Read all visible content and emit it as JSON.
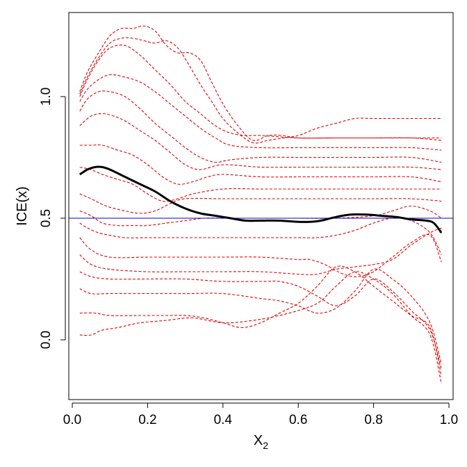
{
  "chart_data": {
    "type": "line",
    "title": "",
    "xlabel": "X",
    "xlabel_sub": "2",
    "ylabel": "ICE(x)",
    "xlim": [
      0,
      1
    ],
    "ylim": [
      -0.22,
      1.34
    ],
    "x_ticks": [
      0.0,
      0.2,
      0.4,
      0.6,
      0.8,
      1.0
    ],
    "x_tick_labels": [
      "0.0",
      "0.2",
      "0.4",
      "0.6",
      "0.8",
      "1.0"
    ],
    "y_ticks": [
      0.0,
      0.5,
      1.0
    ],
    "y_tick_labels": [
      "0.0",
      "0.5",
      "1.0"
    ],
    "reference_line": {
      "y": 0.5,
      "color": "#0000cc"
    },
    "colors": {
      "ice": "#e00000",
      "mean": "#000000",
      "axes": "#000000"
    },
    "ice_curves": [
      {
        "x": [
          0.02,
          0.05,
          0.08,
          0.12,
          0.18,
          0.25,
          0.32,
          0.4,
          0.48,
          0.55,
          0.62,
          0.66,
          0.7,
          0.75,
          0.8,
          0.85,
          0.9,
          0.95,
          0.98
        ],
        "y": [
          0.02,
          0.02,
          0.04,
          0.05,
          0.07,
          0.08,
          0.09,
          0.07,
          0.08,
          0.1,
          0.13,
          0.16,
          0.22,
          0.28,
          0.25,
          0.19,
          0.1,
          0.02,
          -0.18
        ]
      },
      {
        "x": [
          0.02,
          0.06,
          0.1,
          0.18,
          0.25,
          0.3,
          0.35,
          0.4,
          0.45,
          0.5,
          0.55,
          0.6,
          0.65,
          0.7,
          0.75,
          0.8,
          0.85,
          0.9,
          0.95,
          0.98
        ],
        "y": [
          0.11,
          0.11,
          0.1,
          0.1,
          0.1,
          0.1,
          0.09,
          0.07,
          0.05,
          0.07,
          0.11,
          0.15,
          0.22,
          0.3,
          0.28,
          0.22,
          0.16,
          0.1,
          0.05,
          -0.15
        ]
      },
      {
        "x": [
          0.02,
          0.05,
          0.1,
          0.2,
          0.3,
          0.4,
          0.5,
          0.55,
          0.6,
          0.65,
          0.7,
          0.75,
          0.8,
          0.85,
          0.9,
          0.95,
          0.98
        ],
        "y": [
          0.21,
          0.19,
          0.19,
          0.19,
          0.19,
          0.19,
          0.17,
          0.16,
          0.14,
          0.11,
          0.13,
          0.2,
          0.29,
          0.25,
          0.18,
          0.07,
          -0.1
        ]
      },
      {
        "x": [
          0.02,
          0.05,
          0.1,
          0.2,
          0.3,
          0.4,
          0.5,
          0.55,
          0.6,
          0.65,
          0.7,
          0.75,
          0.8,
          0.85,
          0.9,
          0.95,
          0.98
        ],
        "y": [
          0.28,
          0.26,
          0.25,
          0.25,
          0.25,
          0.24,
          0.24,
          0.24,
          0.22,
          0.18,
          0.14,
          0.18,
          0.25,
          0.2,
          0.12,
          0.04,
          -0.12
        ]
      },
      {
        "x": [
          0.02,
          0.05,
          0.1,
          0.2,
          0.3,
          0.4,
          0.5,
          0.6,
          0.65,
          0.7,
          0.75,
          0.8,
          0.85,
          0.9,
          0.95,
          0.98
        ],
        "y": [
          0.35,
          0.31,
          0.29,
          0.28,
          0.28,
          0.28,
          0.28,
          0.27,
          0.27,
          0.29,
          0.3,
          0.31,
          0.33,
          0.39,
          0.44,
          0.46
        ]
      },
      {
        "x": [
          0.02,
          0.05,
          0.1,
          0.2,
          0.3,
          0.4,
          0.5,
          0.6,
          0.63,
          0.67,
          0.72,
          0.76,
          0.8,
          0.85,
          0.9,
          0.95,
          0.98
        ],
        "y": [
          0.42,
          0.37,
          0.34,
          0.34,
          0.34,
          0.34,
          0.34,
          0.33,
          0.33,
          0.31,
          0.27,
          0.26,
          0.28,
          0.34,
          0.4,
          0.43,
          0.32
        ]
      },
      {
        "x": [
          0.02,
          0.04,
          0.07,
          0.1,
          0.14,
          0.2,
          0.3,
          0.4,
          0.5,
          0.6,
          0.65,
          0.7,
          0.75,
          0.8,
          0.85,
          0.9,
          0.95,
          0.98
        ],
        "y": [
          0.48,
          0.46,
          0.44,
          0.43,
          0.42,
          0.42,
          0.42,
          0.42,
          0.42,
          0.42,
          0.42,
          0.43,
          0.45,
          0.48,
          0.5,
          0.49,
          0.44,
          0.35
        ]
      },
      {
        "x": [
          0.02,
          0.05,
          0.08,
          0.12,
          0.16,
          0.2,
          0.25,
          0.3,
          0.35,
          0.4,
          0.5,
          0.6,
          0.7,
          0.8,
          0.85,
          0.9,
          0.95,
          0.98
        ],
        "y": [
          0.53,
          0.51,
          0.48,
          0.47,
          0.47,
          0.47,
          0.48,
          0.49,
          0.5,
          0.5,
          0.5,
          0.5,
          0.5,
          0.51,
          0.53,
          0.55,
          0.53,
          0.5
        ]
      },
      {
        "x": [
          0.02,
          0.05,
          0.09,
          0.14,
          0.18,
          0.22,
          0.26,
          0.3,
          0.4,
          0.5,
          0.6,
          0.7,
          0.8,
          0.9,
          0.98
        ],
        "y": [
          0.6,
          0.58,
          0.55,
          0.53,
          0.52,
          0.53,
          0.56,
          0.58,
          0.58,
          0.58,
          0.58,
          0.58,
          0.58,
          0.58,
          0.57
        ]
      },
      {
        "x": [
          0.02,
          0.05,
          0.08,
          0.12,
          0.16,
          0.2,
          0.24,
          0.28,
          0.32,
          0.4,
          0.5,
          0.6,
          0.7,
          0.8,
          0.9,
          0.98
        ],
        "y": [
          0.71,
          0.7,
          0.68,
          0.66,
          0.64,
          0.6,
          0.57,
          0.58,
          0.6,
          0.62,
          0.62,
          0.62,
          0.62,
          0.62,
          0.62,
          0.62
        ]
      },
      {
        "x": [
          0.02,
          0.05,
          0.08,
          0.12,
          0.16,
          0.2,
          0.24,
          0.28,
          0.32,
          0.36,
          0.4,
          0.5,
          0.6,
          0.7,
          0.8,
          0.9,
          0.98
        ],
        "y": [
          0.8,
          0.8,
          0.8,
          0.78,
          0.76,
          0.72,
          0.67,
          0.64,
          0.65,
          0.67,
          0.68,
          0.67,
          0.67,
          0.67,
          0.67,
          0.67,
          0.65
        ]
      },
      {
        "x": [
          0.02,
          0.05,
          0.08,
          0.11,
          0.14,
          0.18,
          0.22,
          0.26,
          0.3,
          0.34,
          0.4,
          0.5,
          0.6,
          0.7,
          0.8,
          0.9,
          0.98
        ],
        "y": [
          0.88,
          0.92,
          0.93,
          0.92,
          0.9,
          0.86,
          0.82,
          0.77,
          0.72,
          0.7,
          0.72,
          0.71,
          0.71,
          0.71,
          0.71,
          0.71,
          0.7
        ]
      },
      {
        "x": [
          0.02,
          0.04,
          0.07,
          0.1,
          0.14,
          0.18,
          0.22,
          0.26,
          0.3,
          0.34,
          0.38,
          0.42,
          0.5,
          0.6,
          0.7,
          0.8,
          0.9,
          0.98
        ],
        "y": [
          0.94,
          0.99,
          1.02,
          1.02,
          1.0,
          0.95,
          0.89,
          0.84,
          0.79,
          0.75,
          0.73,
          0.74,
          0.75,
          0.75,
          0.75,
          0.75,
          0.75,
          0.73
        ]
      },
      {
        "x": [
          0.02,
          0.04,
          0.07,
          0.1,
          0.14,
          0.18,
          0.22,
          0.26,
          0.3,
          0.34,
          0.38,
          0.42,
          0.5,
          0.6,
          0.7,
          0.8,
          0.9,
          0.98
        ],
        "y": [
          0.98,
          1.03,
          1.07,
          1.09,
          1.08,
          1.06,
          1.02,
          0.97,
          0.92,
          0.87,
          0.83,
          0.8,
          0.79,
          0.79,
          0.79,
          0.79,
          0.79,
          0.78
        ]
      },
      {
        "x": [
          0.02,
          0.04,
          0.07,
          0.1,
          0.14,
          0.18,
          0.22,
          0.26,
          0.3,
          0.34,
          0.38,
          0.42,
          0.46,
          0.5,
          0.6,
          0.7,
          0.8,
          0.9,
          0.98
        ],
        "y": [
          1.0,
          1.07,
          1.15,
          1.2,
          1.21,
          1.17,
          1.11,
          1.05,
          0.98,
          0.93,
          0.88,
          0.85,
          0.84,
          0.84,
          0.83,
          0.83,
          0.83,
          0.83,
          0.82
        ]
      },
      {
        "x": [
          0.02,
          0.04,
          0.07,
          0.1,
          0.13,
          0.16,
          0.19,
          0.22,
          0.25,
          0.28,
          0.31,
          0.34,
          0.37,
          0.4,
          0.44,
          0.48,
          0.52,
          0.56,
          0.6,
          0.65,
          0.7,
          0.75,
          0.8,
          0.9,
          0.98
        ],
        "y": [
          1.01,
          1.08,
          1.16,
          1.22,
          1.24,
          1.24,
          1.23,
          1.22,
          1.23,
          1.2,
          1.13,
          1.05,
          0.98,
          0.91,
          0.85,
          0.81,
          0.82,
          0.83,
          0.84,
          0.87,
          0.89,
          0.91,
          0.91,
          0.91,
          0.91
        ]
      },
      {
        "x": [
          0.02,
          0.04,
          0.07,
          0.1,
          0.13,
          0.16,
          0.19,
          0.22,
          0.25,
          0.28,
          0.31,
          0.34,
          0.37,
          0.4,
          0.44,
          0.48,
          0.52,
          0.56,
          0.6,
          0.7,
          0.8,
          0.9,
          0.98
        ],
        "y": [
          1.02,
          1.1,
          1.18,
          1.25,
          1.28,
          1.28,
          1.29,
          1.27,
          1.21,
          1.18,
          1.18,
          1.15,
          1.06,
          0.97,
          0.88,
          0.82,
          0.84,
          0.84,
          0.83,
          0.83,
          0.83,
          0.83,
          0.83
        ]
      }
    ],
    "mean_curve": {
      "x": [
        0.02,
        0.04,
        0.06,
        0.08,
        0.1,
        0.14,
        0.18,
        0.22,
        0.26,
        0.3,
        0.34,
        0.38,
        0.42,
        0.46,
        0.5,
        0.55,
        0.6,
        0.63,
        0.66,
        0.7,
        0.74,
        0.78,
        0.82,
        0.86,
        0.9,
        0.94,
        0.96,
        0.98
      ],
      "y": [
        0.68,
        0.7,
        0.71,
        0.71,
        0.7,
        0.67,
        0.64,
        0.61,
        0.57,
        0.54,
        0.52,
        0.51,
        0.5,
        0.49,
        0.49,
        0.49,
        0.485,
        0.485,
        0.49,
        0.505,
        0.515,
        0.515,
        0.51,
        0.505,
        0.495,
        0.49,
        0.48,
        0.44
      ]
    }
  }
}
